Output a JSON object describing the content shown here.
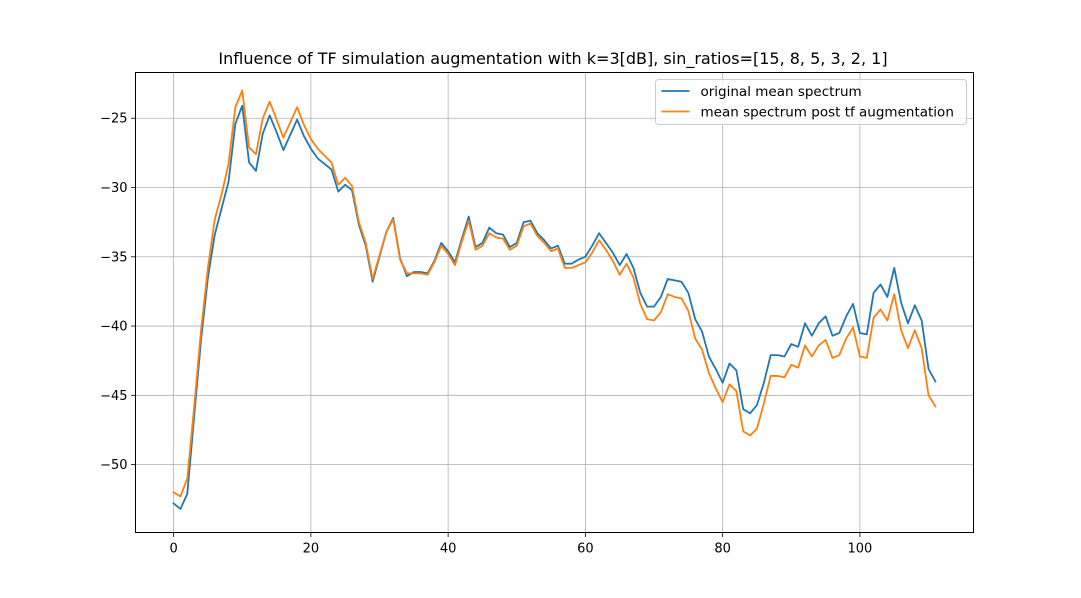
{
  "chart_data": {
    "type": "line",
    "title": "Influence of TF simulation augmentation with k=3[dB], sin_ratios=[15, 8, 5, 3, 2, 1]",
    "xlabel": "",
    "ylabel": "",
    "xlim": [
      -5.55,
      116.55
    ],
    "ylim": [
      -54.9,
      -21.7
    ],
    "xticks": [
      0,
      20,
      40,
      60,
      80,
      100
    ],
    "yticks": [
      -50,
      -45,
      -40,
      -35,
      -30,
      -25
    ],
    "grid": true,
    "legend_position": "top-right",
    "x_start": 0,
    "series": [
      {
        "name": "original mean spectrum",
        "color": "#1f77b4",
        "values": [
          -52.8,
          -53.2,
          -52.1,
          -46.5,
          -41.0,
          -36.5,
          -33.4,
          -31.5,
          -29.6,
          -25.4,
          -24.1,
          -28.2,
          -28.8,
          -26.1,
          -24.8,
          -26.0,
          -27.3,
          -26.2,
          -25.1,
          -26.3,
          -27.2,
          -27.9,
          -28.3,
          -28.7,
          -30.3,
          -29.8,
          -30.2,
          -32.7,
          -34.2,
          -36.8,
          -35.0,
          -33.2,
          -32.2,
          -35.1,
          -36.4,
          -36.1,
          -36.1,
          -36.2,
          -35.3,
          -34.0,
          -34.6,
          -35.4,
          -33.7,
          -32.1,
          -34.3,
          -34.0,
          -32.9,
          -33.3,
          -33.4,
          -34.3,
          -34.0,
          -32.5,
          -32.4,
          -33.3,
          -33.8,
          -34.4,
          -34.2,
          -35.5,
          -35.5,
          -35.2,
          -35.0,
          -34.2,
          -33.3,
          -34.0,
          -34.7,
          -35.6,
          -34.8,
          -35.8,
          -37.6,
          -38.6,
          -38.6,
          -37.9,
          -36.6,
          -36.7,
          -36.8,
          -37.6,
          -39.5,
          -40.4,
          -42.2,
          -43.1,
          -44.1,
          -42.7,
          -43.2,
          -46.0,
          -46.3,
          -45.7,
          -44.1,
          -42.1,
          -42.1,
          -42.2,
          -41.3,
          -41.5,
          -39.8,
          -40.7,
          -39.8,
          -39.3,
          -40.7,
          -40.5,
          -39.3,
          -38.4,
          -40.5,
          -40.6,
          -37.6,
          -37.0,
          -37.9,
          -35.8,
          -38.3,
          -39.8,
          -38.5,
          -39.6,
          -43.1,
          -44.0
        ]
      },
      {
        "name": "mean spectrum post tf augmentation",
        "color": "#ff7f0e",
        "values": [
          -52.0,
          -52.3,
          -51.0,
          -45.8,
          -40.3,
          -35.8,
          -32.3,
          -30.5,
          -28.3,
          -24.2,
          -23.0,
          -27.1,
          -27.6,
          -25.0,
          -23.8,
          -25.1,
          -26.4,
          -25.3,
          -24.2,
          -25.5,
          -26.5,
          -27.2,
          -27.7,
          -28.2,
          -29.8,
          -29.3,
          -29.9,
          -32.5,
          -34.0,
          -36.6,
          -34.9,
          -33.2,
          -32.3,
          -35.2,
          -36.2,
          -36.2,
          -36.2,
          -36.3,
          -35.4,
          -34.2,
          -34.8,
          -35.6,
          -33.9,
          -32.4,
          -34.5,
          -34.2,
          -33.3,
          -33.6,
          -33.7,
          -34.5,
          -34.2,
          -32.8,
          -32.6,
          -33.5,
          -34.0,
          -34.6,
          -34.4,
          -35.8,
          -35.8,
          -35.6,
          -35.4,
          -34.7,
          -33.8,
          -34.5,
          -35.3,
          -36.3,
          -35.5,
          -36.5,
          -38.4,
          -39.5,
          -39.6,
          -39.0,
          -37.7,
          -37.9,
          -38.0,
          -38.9,
          -40.9,
          -41.7,
          -43.4,
          -44.5,
          -45.5,
          -44.2,
          -44.7,
          -47.6,
          -47.9,
          -47.4,
          -45.6,
          -43.6,
          -43.6,
          -43.7,
          -42.8,
          -43.0,
          -41.4,
          -42.2,
          -41.4,
          -41.0,
          -42.3,
          -42.1,
          -40.9,
          -40.1,
          -42.2,
          -42.3,
          -39.4,
          -38.8,
          -39.6,
          -37.7,
          -40.3,
          -41.6,
          -40.3,
          -41.6,
          -45.0,
          -45.8
        ]
      }
    ]
  }
}
